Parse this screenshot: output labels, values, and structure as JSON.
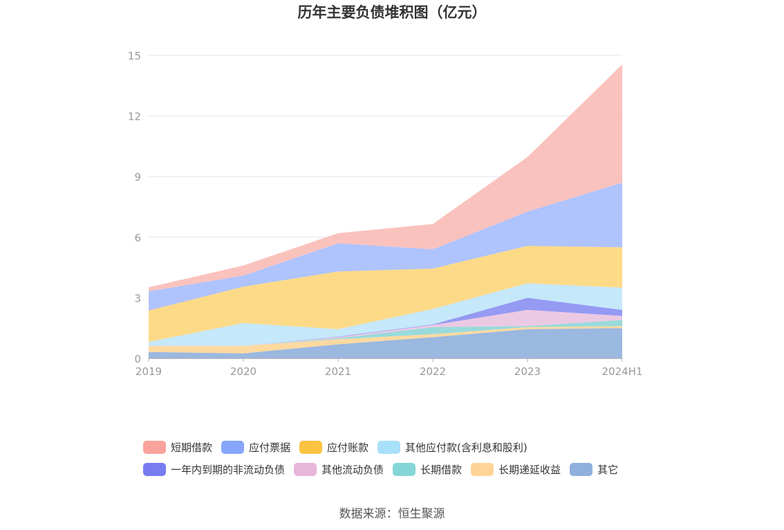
{
  "title": "历年主要负债堆积图（亿元）",
  "source": "数据来源：恒生聚源",
  "chart_data": {
    "type": "area",
    "stacked": true,
    "categories": [
      "2019",
      "2020",
      "2021",
      "2022",
      "2023",
      "2024H1"
    ],
    "ylim": [
      0,
      15
    ],
    "yticks": [
      0,
      3,
      6,
      9,
      12,
      15
    ],
    "grid": true,
    "legend_position": "bottom",
    "series": [
      {
        "name": "其它",
        "color": "#8fb0dd",
        "values": [
          0.32,
          0.25,
          0.7,
          1.05,
          1.45,
          1.5
        ]
      },
      {
        "name": "长期递延收益",
        "color": "#fed596",
        "values": [
          0.3,
          0.37,
          0.25,
          0.15,
          0.1,
          0.1
        ]
      },
      {
        "name": "长期借款",
        "color": "#8ed6d7",
        "values": [
          0,
          0,
          0.05,
          0.35,
          0.05,
          0.3
        ]
      },
      {
        "name": "其他流动负债",
        "color": "#eac3e0",
        "values": [
          0,
          0,
          0.05,
          0.1,
          0.8,
          0.2
        ]
      },
      {
        "name": "一年内到期的非流动负债",
        "color": "#8a8ff2",
        "values": [
          0,
          0,
          0.03,
          0.03,
          0.6,
          0.3
        ]
      },
      {
        "name": "其他应付款(含利息和股利)",
        "color": "#bfe6fa",
        "values": [
          0.2,
          1.13,
          0.37,
          0.77,
          0.72,
          1.1
        ]
      },
      {
        "name": "应付账款",
        "color": "#fdd67a",
        "values": [
          1.55,
          1.8,
          2.85,
          2.0,
          1.85,
          2.0
        ]
      },
      {
        "name": "应付票据",
        "color": "#a6bdfd",
        "values": [
          0.95,
          0.55,
          1.4,
          0.95,
          1.7,
          3.2
        ]
      },
      {
        "name": "短期借款",
        "color": "#f9bbb6",
        "values": [
          0.2,
          0.5,
          0.5,
          1.25,
          2.7,
          5.85
        ]
      }
    ]
  },
  "legend": {
    "row1": [
      {
        "label": "短期借款",
        "color": "#f9a39c"
      },
      {
        "label": "应付票据",
        "color": "#87a5fb"
      },
      {
        "label": "应付账款",
        "color": "#fcc342"
      },
      {
        "label": "其他应付款(含利息和股利)",
        "color": "#a9e0f9"
      }
    ],
    "row2": [
      {
        "label": "一年内到期的非流动负债",
        "color": "#787cf1"
      },
      {
        "label": "其他流动负债",
        "color": "#e7b6db"
      },
      {
        "label": "长期借款",
        "color": "#84d6d8"
      },
      {
        "label": "长期递延收益",
        "color": "#fed596"
      },
      {
        "label": "其它",
        "color": "#8fb0dd"
      }
    ]
  }
}
